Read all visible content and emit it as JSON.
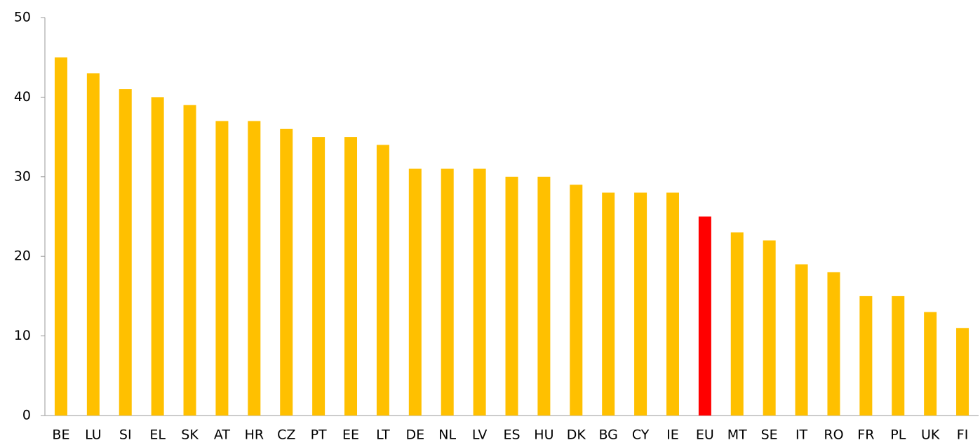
{
  "chart_data": {
    "type": "bar",
    "categories": [
      "BE",
      "LU",
      "SI",
      "EL",
      "SK",
      "AT",
      "HR",
      "CZ",
      "PT",
      "EE",
      "LT",
      "DE",
      "NL",
      "LV",
      "ES",
      "HU",
      "DK",
      "BG",
      "CY",
      "IE",
      "EU",
      "MT",
      "SE",
      "IT",
      "RO",
      "FR",
      "PL",
      "UK",
      "FI"
    ],
    "values": [
      45,
      43,
      41,
      40,
      39,
      37,
      37,
      36,
      35,
      35,
      34,
      31,
      31,
      31,
      30,
      30,
      29,
      28,
      28,
      28,
      25,
      23,
      22,
      19,
      18,
      15,
      15,
      13,
      11
    ],
    "colors": [
      "#ffc000",
      "#ffc000",
      "#ffc000",
      "#ffc000",
      "#ffc000",
      "#ffc000",
      "#ffc000",
      "#ffc000",
      "#ffc000",
      "#ffc000",
      "#ffc000",
      "#ffc000",
      "#ffc000",
      "#ffc000",
      "#ffc000",
      "#ffc000",
      "#ffc000",
      "#ffc000",
      "#ffc000",
      "#ffc000",
      "#ff0000",
      "#ffc000",
      "#ffc000",
      "#ffc000",
      "#ffc000",
      "#ffc000",
      "#ffc000",
      "#ffc000",
      "#ffc000"
    ],
    "ylim": [
      0,
      50
    ],
    "yticks": [
      0,
      10,
      20,
      30,
      40,
      50
    ],
    "grid": false
  }
}
